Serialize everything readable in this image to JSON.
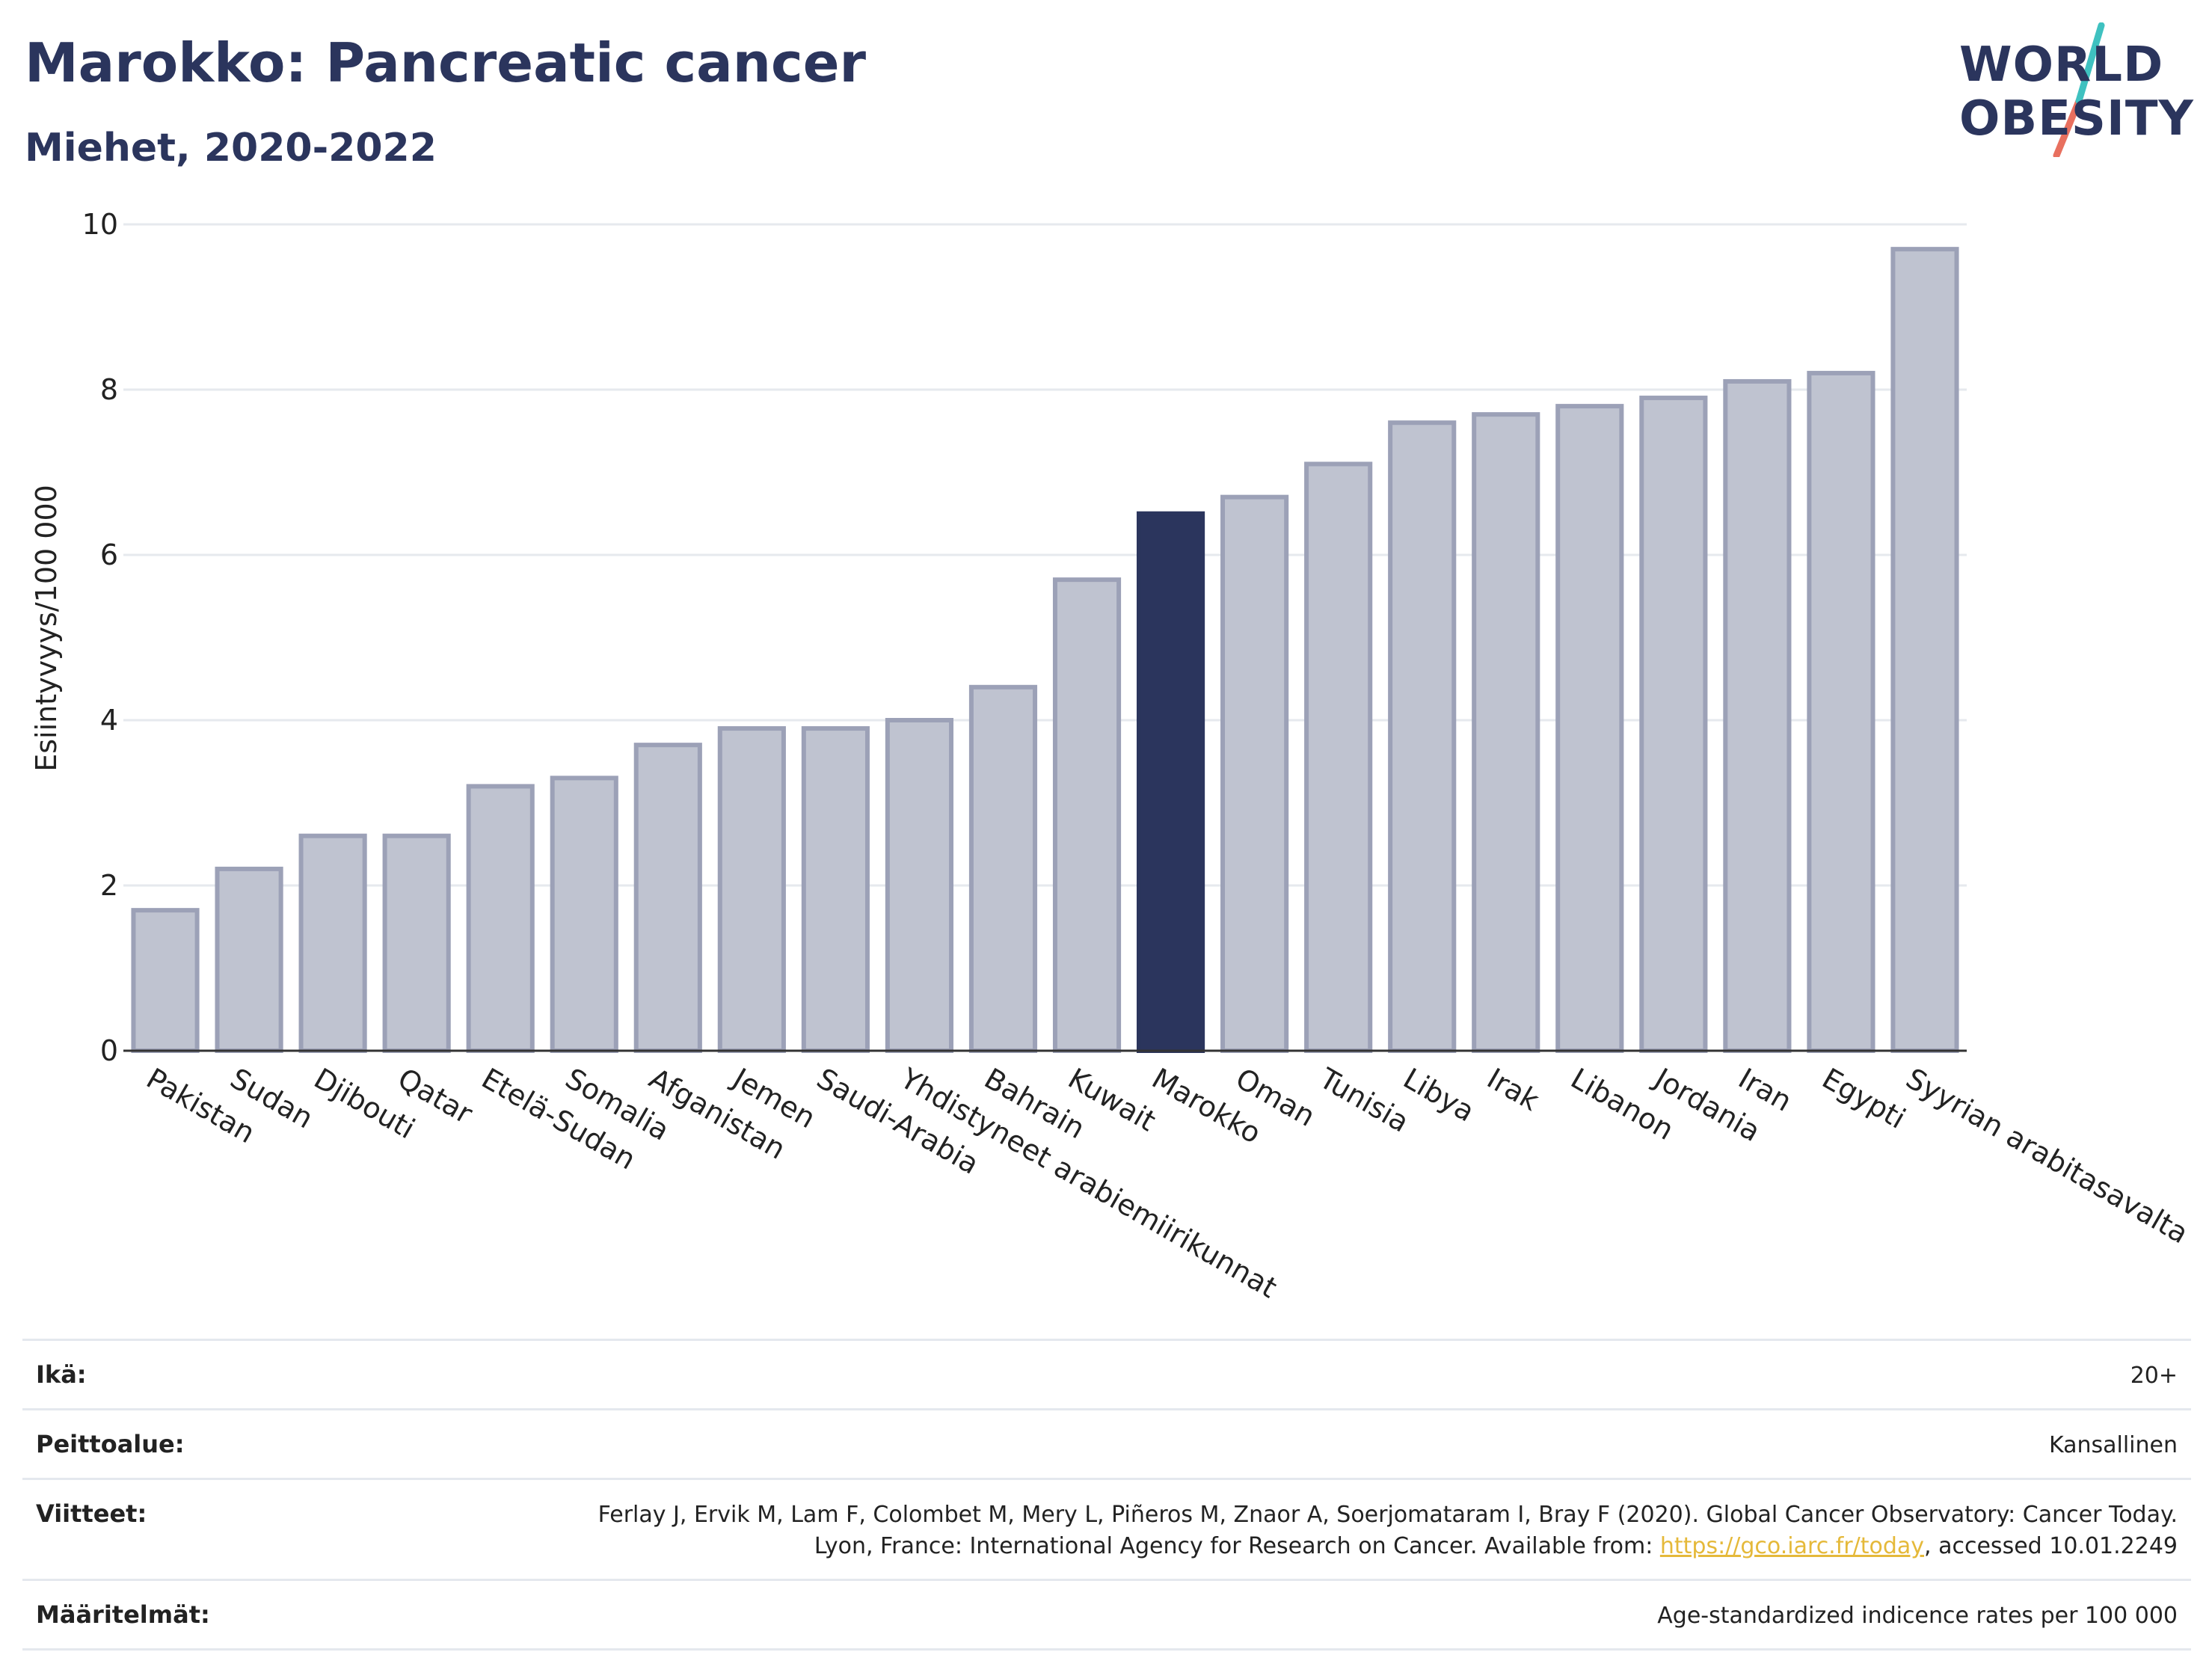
{
  "header": {
    "title": "Marokko: Pancreatic cancer",
    "subtitle": "Miehet, 2020-2022"
  },
  "logo": {
    "line1": "WORLD",
    "line2": "OBESITY"
  },
  "colors": {
    "highlight": "#2b355d",
    "bar_fill": "#bfc3d0",
    "bar_stroke": "#9ca1b7",
    "grid": "#e6e9ee",
    "link": "#e5b93a",
    "logo_teal": "#3fc1c0",
    "logo_red": "#e8705f"
  },
  "chart_data": {
    "type": "bar",
    "title": "Marokko: Pancreatic cancer",
    "subtitle": "Miehet, 2020-2022",
    "ylabel": "Esiintyvyys/100 000",
    "xlabel": "",
    "ylim": [
      0,
      10
    ],
    "yticks": [
      0,
      2,
      4,
      6,
      8,
      10
    ],
    "grid": true,
    "highlight": "Marokko",
    "categories": [
      "Pakistan",
      "Sudan",
      "Djibouti",
      "Qatar",
      "Etelä-Sudan",
      "Somalia",
      "Afganistan",
      "Jemen",
      "Saudi-Arabia",
      "Yhdistyneet arabiemiirikunnat",
      "Bahrain",
      "Kuwait",
      "Marokko",
      "Oman",
      "Tunisia",
      "Libya",
      "Irak",
      "Libanon",
      "Jordania",
      "Iran",
      "Egypti",
      "Syyrian arabitasavalta"
    ],
    "values": [
      1.7,
      2.2,
      2.6,
      2.6,
      3.2,
      3.3,
      3.7,
      3.9,
      3.9,
      4.0,
      4.4,
      5.7,
      6.5,
      6.7,
      7.1,
      7.6,
      7.7,
      7.8,
      7.9,
      8.1,
      8.2,
      9.7
    ]
  },
  "footer": {
    "rows": [
      {
        "label": "Ikä:",
        "value": "20+"
      },
      {
        "label": "Peittoalue:",
        "value": "Kansallinen"
      },
      {
        "label": "Viitteet:",
        "value_pre": "Ferlay J, Ervik M, Lam F, Colombet M, Mery L, Piñeros M, Znaor A, Soerjomataram I, Bray F (2020). Global Cancer Observatory: Cancer Today. Lyon, France: International Agency for Research on Cancer. Available from: ",
        "link": "https://gco.iarc.fr/today",
        "value_post": ", accessed 10.01.2249"
      },
      {
        "label": "Määritelmät:",
        "value": "Age-standardized indicence rates per 100 000"
      }
    ]
  }
}
